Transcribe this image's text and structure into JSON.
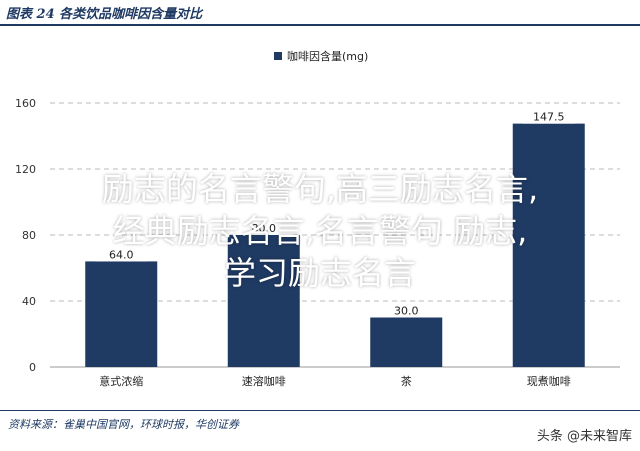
{
  "header": {
    "title": "图表 24 各类饮品咖啡因含量对比"
  },
  "chart_data": {
    "type": "bar",
    "legend": "咖啡因含量(mg)",
    "categories": [
      "意式浓缩",
      "速溶咖啡",
      "茶",
      "现煮咖啡"
    ],
    "values": [
      64.0,
      80.0,
      30.0,
      147.5
    ],
    "value_labels": [
      "64.0",
      "80.0",
      "30.0",
      "147.5"
    ],
    "ylim": [
      0,
      160
    ],
    "yticks": [
      0,
      40,
      80,
      120,
      160
    ],
    "grid": true,
    "legend_position": "top-center",
    "bar_color": "#1f3a63"
  },
  "footer": {
    "source": "资料来源：雀巢中国官网，环球时报，华创证券"
  },
  "watermark": {
    "text": "头条 @未来智库"
  },
  "overlay": {
    "line1": "励志的名言警句,高三励志名言,",
    "line2": "经典励志名言,名言警句 励志,",
    "line3": "学习励志名言"
  }
}
